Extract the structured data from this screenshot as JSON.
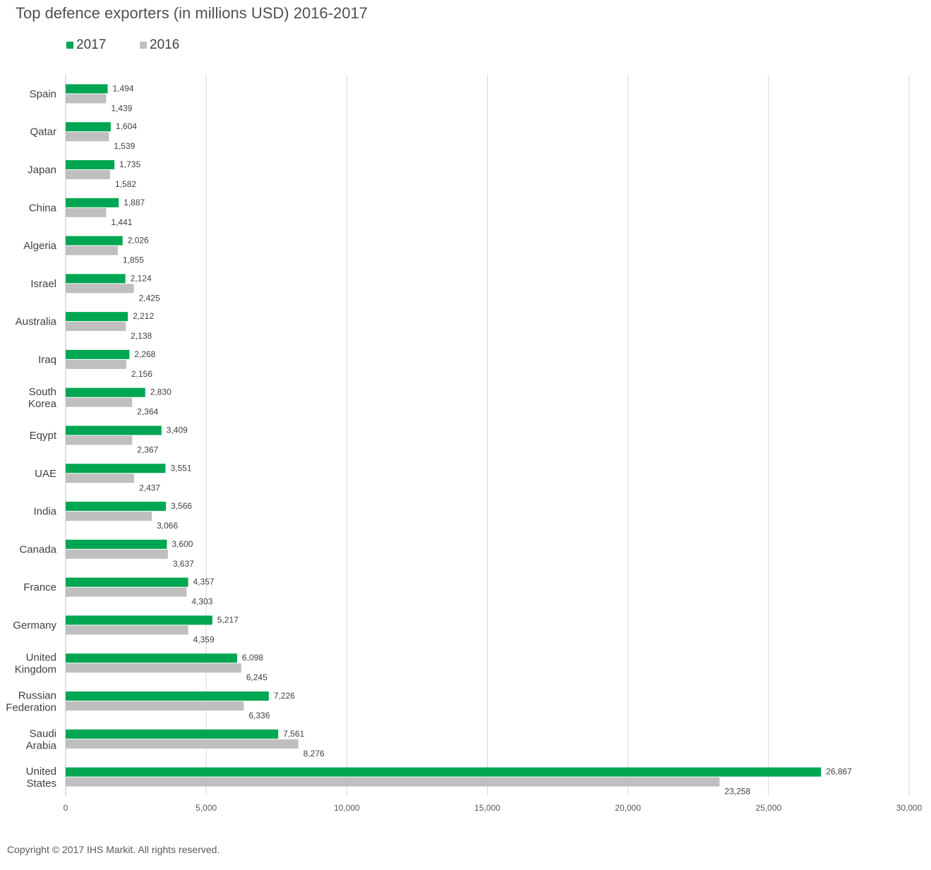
{
  "title": "Top defence exporters (in millions USD) 2016-2017",
  "footer": "Copyright © 2017 IHS Markit. All rights reserved.",
  "colors": {
    "series_2017": "#00a651",
    "series_2016": "#bfbfbf",
    "grid": "#d9d9d9",
    "text": "#404040"
  },
  "legend": [
    {
      "label": "2017",
      "color": "#00a651"
    },
    {
      "label": "2016",
      "color": "#bfbfbf"
    }
  ],
  "chart_data": {
    "type": "bar",
    "orientation": "horizontal",
    "title": "Top defence exporters (in millions USD) 2016-2017",
    "xlim": [
      0,
      30000
    ],
    "xticks": [
      "0",
      "5,000",
      "10,000",
      "15,000",
      "20,000",
      "25,000",
      "30,000"
    ],
    "grid": true,
    "legend_position": "top-left",
    "categories": [
      [
        "Spain"
      ],
      [
        "Qatar"
      ],
      [
        "Japan"
      ],
      [
        "China"
      ],
      [
        "Algeria"
      ],
      [
        "Israel"
      ],
      [
        "Australia"
      ],
      [
        "Iraq"
      ],
      [
        "South",
        "Korea"
      ],
      [
        "Eqypt"
      ],
      [
        "UAE"
      ],
      [
        "India"
      ],
      [
        "Canada"
      ],
      [
        "France"
      ],
      [
        "Germany"
      ],
      [
        "United",
        "Kingdom"
      ],
      [
        "Russian",
        "Federation"
      ],
      [
        "Saudi",
        "Arabia"
      ],
      [
        "United",
        "States"
      ]
    ],
    "series": [
      {
        "name": "2017",
        "color": "#00a651",
        "values": [
          1494,
          1604,
          1735,
          1887,
          2026,
          2124,
          2212,
          2268,
          2830,
          3409,
          3551,
          3566,
          3600,
          4357,
          5217,
          6098,
          7226,
          7561,
          26867
        ],
        "labels": [
          "1,494",
          "1,604",
          "1,735",
          "1,887",
          "2,026",
          "2,124",
          "2,212",
          "2,268",
          "2,830",
          "3,409",
          "3,551",
          "3,566",
          "3,600",
          "4,357",
          "5,217",
          "6,098",
          "7,226",
          "7,561",
          "26,867"
        ]
      },
      {
        "name": "2016",
        "color": "#bfbfbf",
        "values": [
          1439,
          1539,
          1582,
          1441,
          1855,
          2425,
          2138,
          2156,
          2364,
          2367,
          2437,
          3066,
          3637,
          4303,
          4359,
          6245,
          6336,
          8276,
          23258
        ],
        "labels": [
          "1,439",
          "1,539",
          "1,582",
          "1,441",
          "1,855",
          "2,425",
          "2,138",
          "2,156",
          "2,364",
          "2,367",
          "2,437",
          "3,066",
          "3,637",
          "4,303",
          "4,359",
          "6,245",
          "6,336",
          "8,276",
          "23,258"
        ]
      }
    ]
  }
}
